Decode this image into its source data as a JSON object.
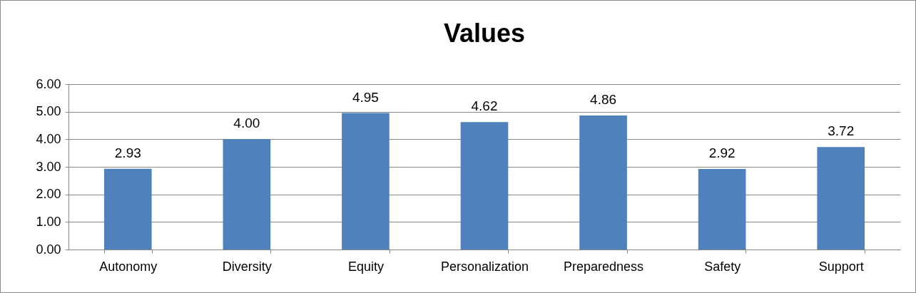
{
  "chart_data": {
    "type": "bar",
    "title": "Values",
    "categories": [
      "Autonomy",
      "Diversity",
      "Equity",
      "Personalization",
      "Preparedness",
      "Safety",
      "Support"
    ],
    "values": [
      2.93,
      4.0,
      4.95,
      4.62,
      4.86,
      2.92,
      3.72
    ],
    "value_labels": [
      "2.93",
      "4.00",
      "4.95",
      "4.62",
      "4.86",
      "2.92",
      "3.72"
    ],
    "color": "#4f81bd",
    "ylim": [
      0,
      6
    ],
    "yticks": [
      {
        "value": 0,
        "label": "0.00"
      },
      {
        "value": 1,
        "label": "1.00"
      },
      {
        "value": 2,
        "label": "2.00"
      },
      {
        "value": 3,
        "label": "3.00"
      },
      {
        "value": 4,
        "label": "4.00"
      },
      {
        "value": 5,
        "label": "5.00"
      },
      {
        "value": 6,
        "label": "6.00"
      }
    ],
    "grid": "y"
  }
}
